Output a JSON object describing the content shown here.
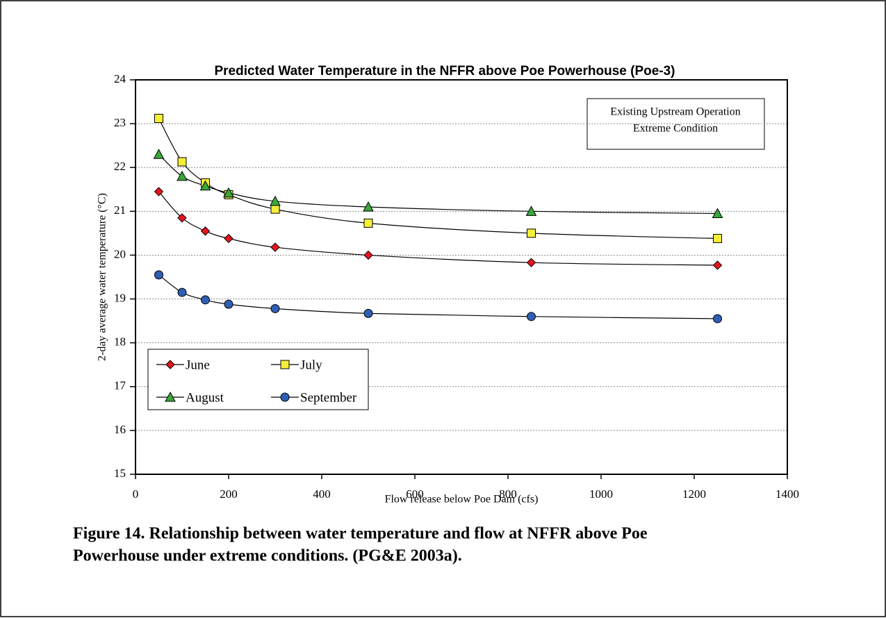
{
  "chart_data": {
    "type": "line",
    "title": "Predicted Water Temperature in the NFFR above Poe Powerhouse (Poe-3)",
    "x_label": "Flow release below Poe Dam (cfs)",
    "y_label": "2-day average water temperature (°C)",
    "x": [
      50,
      100,
      150,
      200,
      300,
      500,
      850,
      1250
    ],
    "series": [
      {
        "name": "June",
        "color": "#e8141c",
        "marker": "diamond",
        "values": [
          21.45,
          20.85,
          20.55,
          20.38,
          20.18,
          20.0,
          19.83,
          19.77
        ]
      },
      {
        "name": "July",
        "color": "#f5ef38",
        "marker": "square",
        "values": [
          23.12,
          22.13,
          21.65,
          21.38,
          21.05,
          20.73,
          20.5,
          20.38
        ]
      },
      {
        "name": "August",
        "color": "#3aa83a",
        "marker": "triangle",
        "values": [
          22.3,
          21.8,
          21.58,
          21.42,
          21.23,
          21.1,
          21.0,
          20.95
        ]
      },
      {
        "name": "September",
        "color": "#2f5fb3",
        "marker": "circle",
        "values": [
          19.55,
          19.15,
          18.98,
          18.88,
          18.78,
          18.67,
          18.6,
          18.55
        ]
      }
    ],
    "xlim": [
      0,
      1400
    ],
    "xticks": [
      0,
      200,
      400,
      600,
      800,
      1000,
      1200,
      1400
    ],
    "ylim": [
      15,
      24
    ],
    "yticks": [
      15,
      16,
      17,
      18,
      19,
      20,
      21,
      22,
      23,
      24
    ],
    "grid": true,
    "legend": "lower left",
    "annotation": [
      "Existing Upstream Operation",
      "Extreme Condition"
    ],
    "caption": [
      "Figure 14.  Relationship between water temperature and flow at NFFR above Poe",
      "Powerhouse under extreme conditions. (PG&E 2003a)."
    ]
  }
}
